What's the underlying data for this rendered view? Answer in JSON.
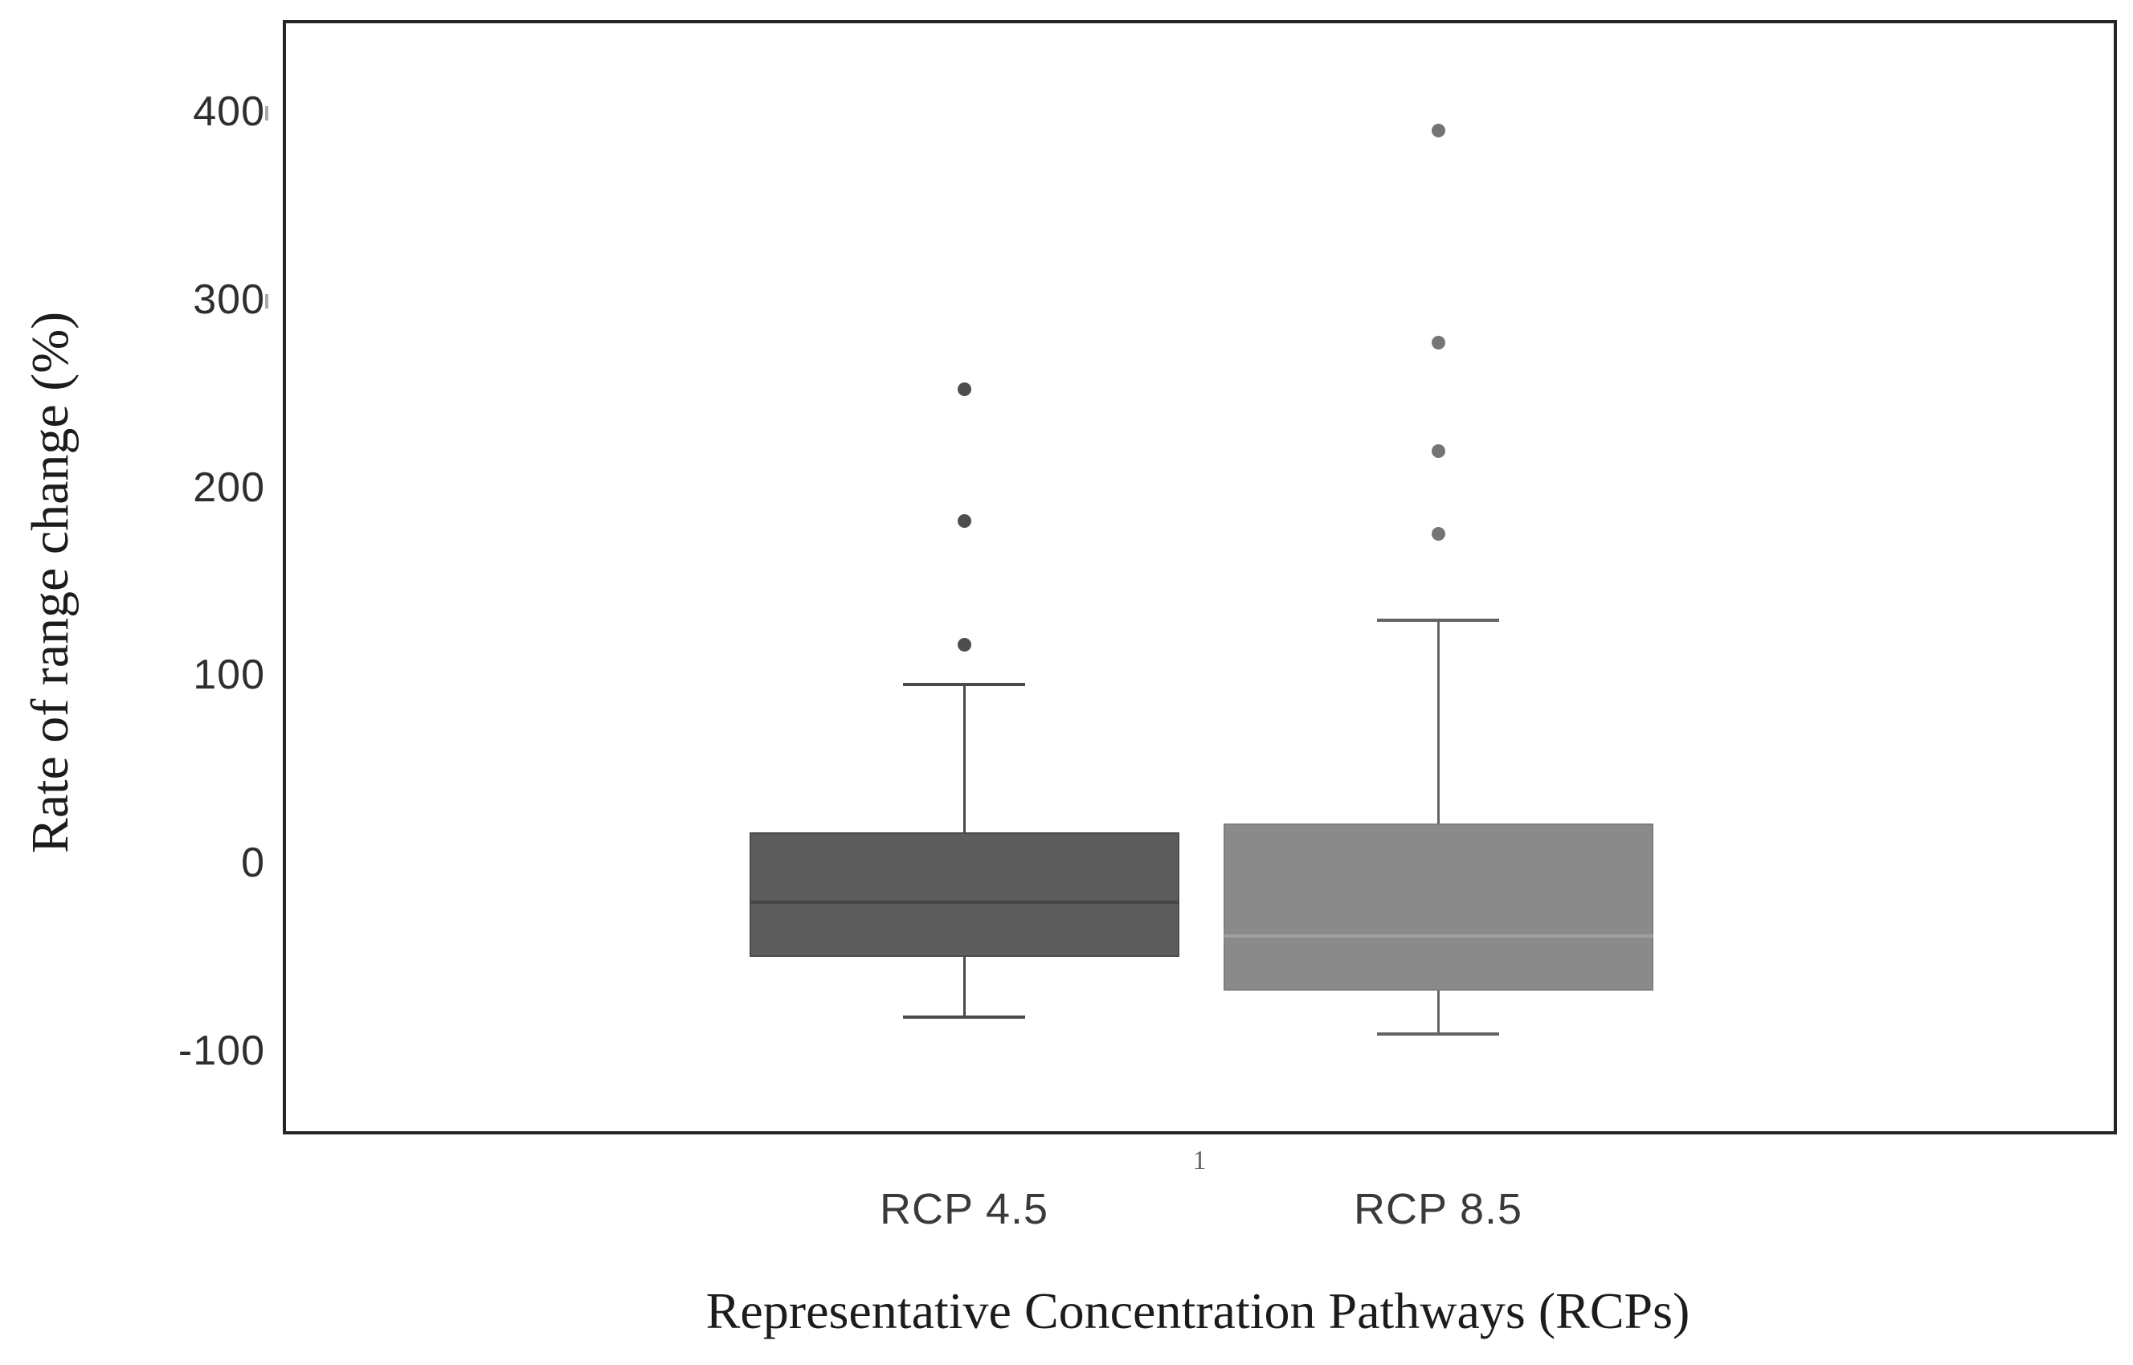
{
  "chart_data": {
    "type": "boxplot",
    "xlabel": "Representative Concentration Pathways (RCPs)",
    "ylabel": "Rate of range change (%)",
    "categories": [
      "RCP 4.5",
      "RCP 8.5"
    ],
    "y_ticks": [
      400,
      300,
      200,
      100,
      0,
      -100
    ],
    "ylim": [
      -142,
      450
    ],
    "grid": false,
    "legend": "none",
    "y_axis_minor_marks_at": [
      400,
      300
    ],
    "footnote_marker": "1",
    "series": [
      {
        "name": "RCP 4.5",
        "whisker_low": -81,
        "q1": -49,
        "median": -20,
        "q3": 17,
        "whisker_high": 96,
        "outliers": [
          117,
          183,
          253
        ],
        "fill_color": "#5d5d5d",
        "edge_color": "#4b4b4b",
        "median_color": "#454545",
        "line_color": "#4a4a4a",
        "dot_color": "#4d4d4d"
      },
      {
        "name": "RCP 8.5",
        "whisker_low": -90,
        "q1": -67,
        "median": -38,
        "q3": 22,
        "whisker_high": 130,
        "outliers": [
          176,
          220,
          278,
          391
        ],
        "fill_color": "#8a8a8a",
        "edge_color": "#7e7e7e",
        "median_color": "#9f9f9f",
        "line_color": "#646464",
        "dot_color": "#757575"
      }
    ],
    "colors": {
      "plot_border": "#262626",
      "tick_label": "#2e2e2e",
      "category_label": "#3a3a3a",
      "axis_title": "#1c1c1c",
      "minor_mark": "#ababab",
      "footnote": "#666666",
      "background": "#ffffff"
    }
  }
}
